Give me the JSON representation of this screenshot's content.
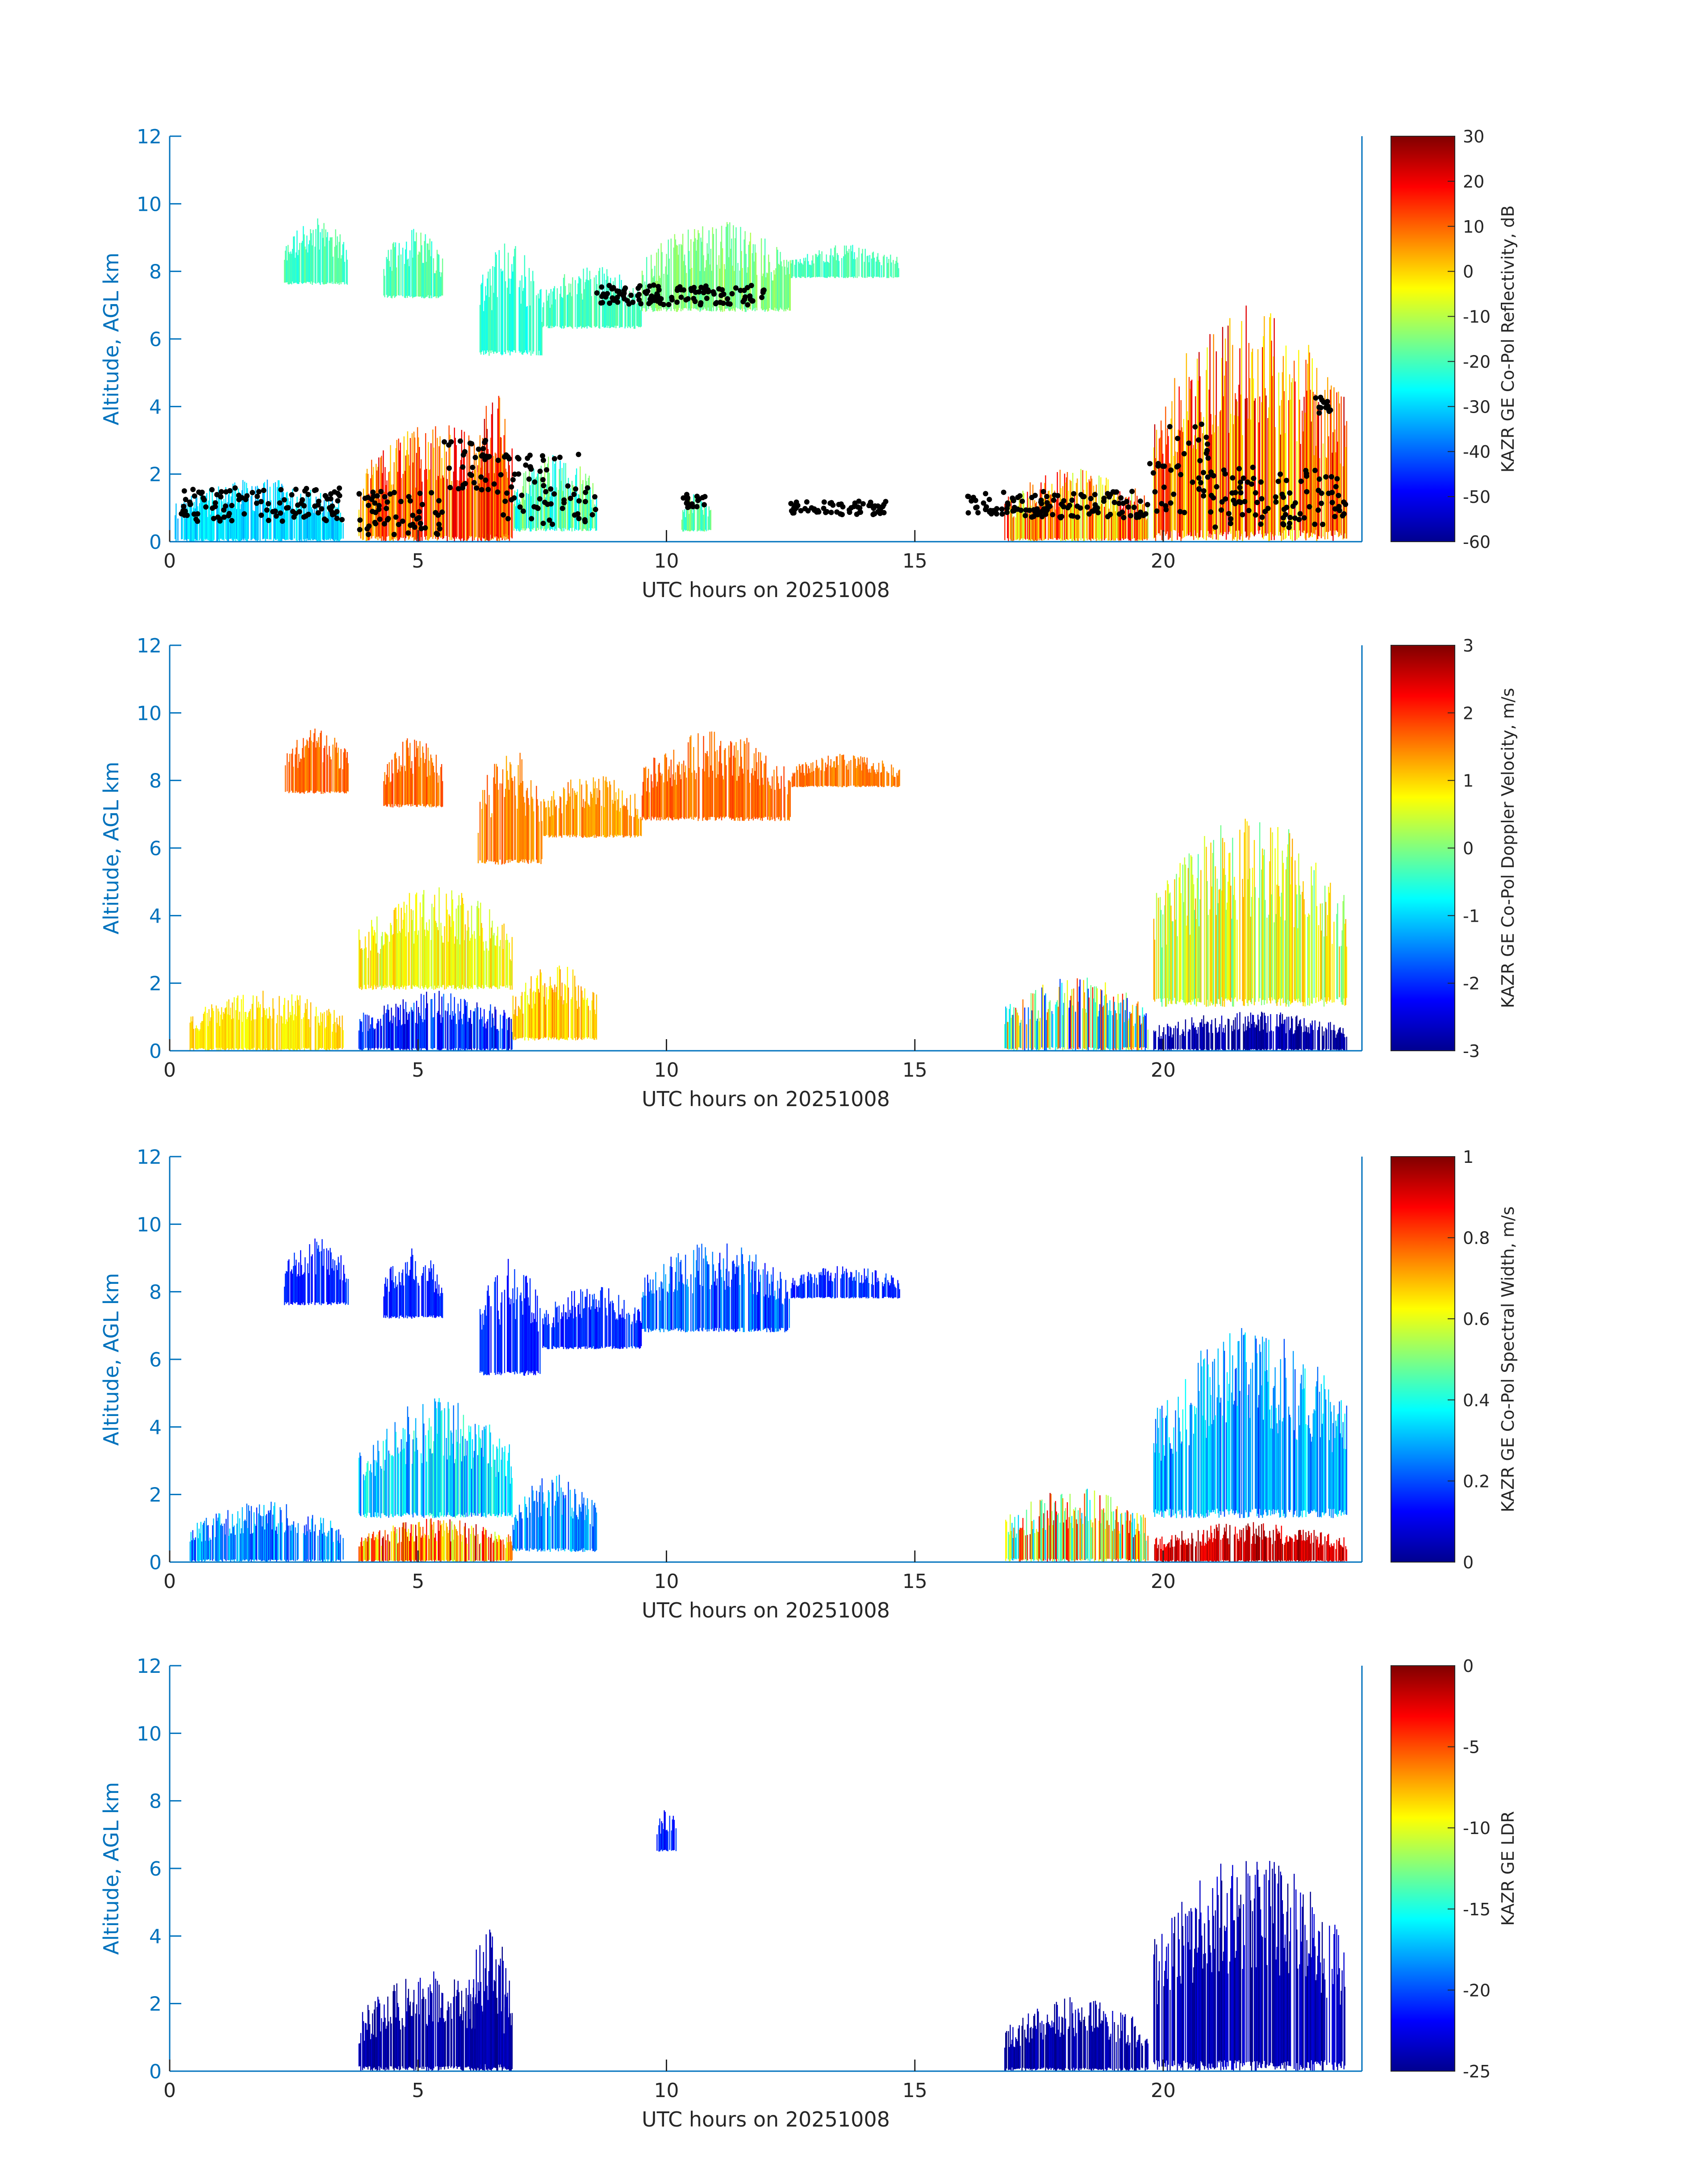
{
  "figure": {
    "background": "#ffffff",
    "axis_color": "#0072BD",
    "tick_label_color": "#262626"
  },
  "chart_data": [
    {
      "type": "heatmap",
      "xlabel": "UTC hours on 20251008",
      "ylabel": "Altitude, AGL km",
      "xlim": [
        0,
        24
      ],
      "ylim": [
        0,
        12
      ],
      "xticks": [
        0,
        5,
        10,
        15,
        20
      ],
      "yticks": [
        0,
        2,
        4,
        6,
        8,
        10,
        12
      ],
      "colorbar": {
        "label": "KAZR GE Co-Pol Reflectivity, dB",
        "range": [
          -60,
          30
        ],
        "ticks": [
          -60,
          -50,
          -40,
          -30,
          -20,
          -10,
          0,
          10,
          20,
          30
        ],
        "colormap": "jet"
      },
      "overlay": {
        "type": "scatter",
        "color": "#000000",
        "description": "cloud base points"
      }
    },
    {
      "type": "heatmap",
      "xlabel": "UTC hours on 20251008",
      "ylabel": "Altitude, AGL km",
      "xlim": [
        0,
        24
      ],
      "ylim": [
        0,
        12
      ],
      "xticks": [
        0,
        5,
        10,
        15,
        20
      ],
      "yticks": [
        0,
        2,
        4,
        6,
        8,
        10,
        12
      ],
      "colorbar": {
        "label": "KAZR GE Co-Pol Doppler Velocity, m/s",
        "range": [
          -3,
          3
        ],
        "ticks": [
          -3,
          -2,
          -1,
          0,
          1,
          2,
          3
        ],
        "colormap": "jet"
      }
    },
    {
      "type": "heatmap",
      "xlabel": "UTC hours on 20251008",
      "ylabel": "Altitude, AGL km",
      "xlim": [
        0,
        24
      ],
      "ylim": [
        0,
        12
      ],
      "xticks": [
        0,
        5,
        10,
        15,
        20
      ],
      "yticks": [
        0,
        2,
        4,
        6,
        8,
        10,
        12
      ],
      "colorbar": {
        "label": "KAZR GE Co-Pol Spectral Width, m/s",
        "range": [
          0,
          1
        ],
        "ticks": [
          0,
          0.2,
          0.4,
          0.6,
          0.8,
          1
        ],
        "colormap": "jet"
      }
    },
    {
      "type": "heatmap",
      "xlabel": "UTC hours on 20251008",
      "ylabel": "Altitude, AGL km",
      "xlim": [
        0,
        24
      ],
      "ylim": [
        0,
        12
      ],
      "xticks": [
        0,
        5,
        10,
        15,
        20
      ],
      "yticks": [
        0,
        2,
        4,
        6,
        8,
        10,
        12
      ],
      "colorbar": {
        "label": "KAZR GE LDR",
        "range": [
          -25,
          0
        ],
        "ticks": [
          -25,
          -20,
          -15,
          -10,
          -5,
          0
        ],
        "colormap": "jet"
      }
    }
  ]
}
